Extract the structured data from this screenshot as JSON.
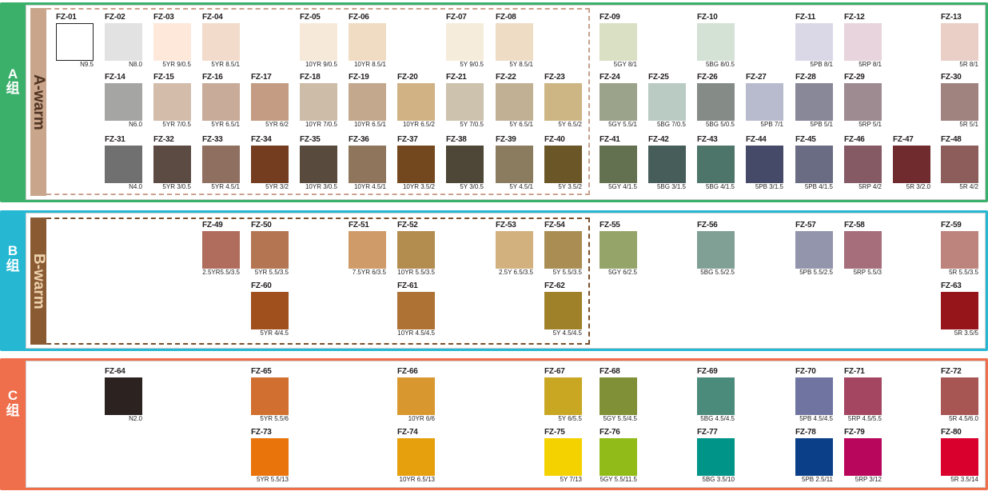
{
  "groups": [
    {
      "band_letter": "A",
      "band_char": "组",
      "strip_label": "A-warm",
      "frame_color": "#3bb06b",
      "strip_color": "#c9a58b",
      "strip_text_color": "#4f3422",
      "dash_color": "#c9a18c",
      "rows": [
        [
          {
            "id": "FZ-01",
            "color": "#ffffff",
            "code": "N9.5"
          },
          {
            "id": "FZ-02",
            "color": "#e2e2e2",
            "code": "N8.0"
          },
          {
            "id": "FZ-03",
            "color": "#fde8da",
            "code": "5YR 9/0.5"
          },
          {
            "id": "FZ-04",
            "color": "#f2dbca",
            "code": "5YR 8.5/1"
          },
          {
            "id": "FZ-05",
            "color": "#f6e9d9",
            "code": "10YR 9/0.5"
          },
          {
            "id": "FZ-06",
            "color": "#f0dcc3",
            "code": "10YR 8.5/1"
          },
          {
            "id": "FZ-07",
            "color": "#f6ecdb",
            "code": "5Y 9/0.5"
          },
          {
            "id": "FZ-08",
            "color": "#eedcc4",
            "code": "5Y 8.5/1"
          },
          {
            "id": "FZ-09",
            "color": "#d9e0c4",
            "code": "5GY 8/1"
          },
          {
            "id": "FZ-10",
            "color": "#d4e1d5",
            "code": "5BG 8/0.5"
          },
          {
            "id": "FZ-11",
            "color": "#dad8e7",
            "code": "5PB 8/1"
          },
          {
            "id": "FZ-12",
            "color": "#e7d4dc",
            "code": "5RP 8/1"
          },
          {
            "id": "FZ-13",
            "color": "#e9cfc6",
            "code": "5R 8/1"
          }
        ],
        [
          {
            "id": "FZ-14",
            "color": "#a5a5a4",
            "code": "N6.0"
          },
          {
            "id": "FZ-15",
            "color": "#d3bcaa",
            "code": "5YR 7/0.5"
          },
          {
            "id": "FZ-16",
            "color": "#c8ab98",
            "code": "5YR 6.5/1"
          },
          {
            "id": "FZ-17",
            "color": "#c49c83",
            "code": "5YR 6/2"
          },
          {
            "id": "FZ-18",
            "color": "#ccbca8",
            "code": "10YR 7/0.5"
          },
          {
            "id": "FZ-19",
            "color": "#c3a88d",
            "code": "10YR 6.5/1"
          },
          {
            "id": "FZ-20",
            "color": "#d0b284",
            "code": "10YR 6.5/2"
          },
          {
            "id": "FZ-21",
            "color": "#cdc2ad",
            "code": "5Y 7/0.5"
          },
          {
            "id": "FZ-22",
            "color": "#c2b094",
            "code": "5Y 6.5/1"
          },
          {
            "id": "FZ-23",
            "color": "#ceb584",
            "code": "5Y 6.5/2"
          },
          {
            "id": "FZ-24",
            "color": "#9ca38b",
            "code": "5GY 5.5/1"
          },
          {
            "id": "FZ-25",
            "color": "#b9cbc2",
            "code": "5BG 7/0.5"
          },
          {
            "id": "FZ-26",
            "color": "#858c88",
            "code": "5BG 5/0.5"
          },
          {
            "id": "FZ-27",
            "color": "#b8bbcd",
            "code": "5PB 7/1"
          },
          {
            "id": "FZ-28",
            "color": "#888898",
            "code": "5PB 5/1"
          },
          {
            "id": "FZ-29",
            "color": "#9d8b91",
            "code": "5RP 5/1"
          },
          {
            "id": "FZ-30",
            "color": "#a0837f",
            "code": "5R 5/1"
          }
        ],
        [
          {
            "id": "FZ-31",
            "color": "#707070",
            "code": "N4.0"
          },
          {
            "id": "FZ-32",
            "color": "#5b4b43",
            "code": "5YR 3/0.5"
          },
          {
            "id": "FZ-33",
            "color": "#8f6f5f",
            "code": "5YR 4.5/1"
          },
          {
            "id": "FZ-34",
            "color": "#743d20",
            "code": "5YR 3/2"
          },
          {
            "id": "FZ-35",
            "color": "#584b3d",
            "code": "10YR 3/0.5"
          },
          {
            "id": "FZ-36",
            "color": "#90755d",
            "code": "10YR 4.5/1"
          },
          {
            "id": "FZ-37",
            "color": "#73481e",
            "code": "10YR 3.5/2"
          },
          {
            "id": "FZ-38",
            "color": "#4e4636",
            "code": "5Y 3/0.5"
          },
          {
            "id": "FZ-39",
            "color": "#8b7c60",
            "code": "5Y 4.5/1"
          },
          {
            "id": "FZ-40",
            "color": "#6b5627",
            "code": "5Y 3.5/2"
          },
          {
            "id": "FZ-41",
            "color": "#637151",
            "code": "5GY 4/1.5"
          },
          {
            "id": "FZ-42",
            "color": "#465d59",
            "code": "5BG 3/1.5"
          },
          {
            "id": "FZ-43",
            "color": "#4e7569",
            "code": "5BG 4/1.5"
          },
          {
            "id": "FZ-44",
            "color": "#464a69",
            "code": "5PB 3/1.5"
          },
          {
            "id": "FZ-45",
            "color": "#696c82",
            "code": "5PB 4/1.5"
          },
          {
            "id": "FZ-46",
            "color": "#865a65",
            "code": "5RP 4/2"
          },
          {
            "id": "FZ-47",
            "color": "#6f2b2e",
            "code": "5R 3/2.0"
          },
          {
            "id": "FZ-48",
            "color": "#8c5d5a",
            "code": "5R 4/2"
          }
        ]
      ]
    },
    {
      "band_letter": "B",
      "band_char": "组",
      "strip_label": "B-warm",
      "frame_color": "#26b8d3",
      "strip_color": "#8a5a33",
      "strip_text_color": "#edd2ae",
      "dash_color": "#7b4f2c",
      "rows": [
        [
          {
            "id": "FZ-49",
            "color": "#b06d5d",
            "code": "2.5YR5.5/3.5"
          },
          {
            "id": "FZ-50",
            "color": "#b47552",
            "code": "5YR 5.5/3.5"
          },
          {
            "id": "FZ-51",
            "color": "#cf9b68",
            "code": "7.5YR 6/3.5"
          },
          {
            "id": "FZ-52",
            "color": "#b38c50",
            "code": "10YR 5.5/3.5"
          },
          {
            "id": "FZ-53",
            "color": "#d2b17e",
            "code": "2.5Y 6.5/3.5"
          },
          {
            "id": "FZ-54",
            "color": "#a98d53",
            "code": "5Y 5.5/3.5"
          },
          {
            "id": "FZ-55",
            "color": "#95a569",
            "code": "5GY 6/2.5"
          },
          {
            "id": "FZ-56",
            "color": "#80a096",
            "code": "5BG 5.5/2.5"
          },
          {
            "id": "FZ-57",
            "color": "#9395ac",
            "code": "5PB 5.5/2.5"
          },
          {
            "id": "FZ-58",
            "color": "#a66d7b",
            "code": "5RP 5.5/3"
          },
          {
            "id": "FZ-59",
            "color": "#bd837d",
            "code": "5R 5.5/3.5"
          }
        ],
        [
          {
            "id": "FZ-60",
            "color": "#9f501c",
            "code": "5YR 4/4.5"
          },
          {
            "id": "FZ-61",
            "color": "#ae7334",
            "code": "10YR 4.5/4.5"
          },
          {
            "id": "FZ-62",
            "color": "#9f8129",
            "code": "5Y 4.5/4.5"
          },
          {
            "id": "FZ-63",
            "color": "#95151a",
            "code": "5R 3.5/5"
          }
        ]
      ]
    },
    {
      "band_letter": "C",
      "band_char": "组",
      "frame_color": "#ef6e4b",
      "rows": [
        [
          {
            "id": "FZ-64",
            "color": "#2c2321",
            "code": "N2.0"
          },
          {
            "id": "FZ-65",
            "color": "#d06f30",
            "code": "5YR 5.5/6"
          },
          {
            "id": "FZ-66",
            "color": "#d8982f",
            "code": "10YR 6/6"
          },
          {
            "id": "FZ-67",
            "color": "#c9a723",
            "code": "5Y 6/5.5"
          },
          {
            "id": "FZ-68",
            "color": "#7f9036",
            "code": "5GY 5.5/4.5"
          },
          {
            "id": "FZ-69",
            "color": "#4b8b7b",
            "code": "5BG 4.5/4.5"
          },
          {
            "id": "FZ-70",
            "color": "#6f75a0",
            "code": "5PB 4.5/4.5"
          },
          {
            "id": "FZ-71",
            "color": "#a44661",
            "code": "5RP 4.5/5.5"
          },
          {
            "id": "FZ-72",
            "color": "#a85653",
            "code": "5R 4.5/6.0"
          }
        ],
        [
          {
            "id": "FZ-73",
            "color": "#e8740b",
            "code": "5YR 5.5/13"
          },
          {
            "id": "FZ-74",
            "color": "#e6a00d",
            "code": "10YR 6.5/13"
          },
          {
            "id": "FZ-75",
            "color": "#f4d200",
            "code": "5Y 7/13"
          },
          {
            "id": "FZ-76",
            "color": "#90bb18",
            "code": "5GY 5.5/11.5"
          },
          {
            "id": "FZ-77",
            "color": "#009488",
            "code": "5BG 3.5/10"
          },
          {
            "id": "FZ-78",
            "color": "#0b4089",
            "code": "5PB 2.5/11"
          },
          {
            "id": "FZ-79",
            "color": "#b9065d",
            "code": "5RP 3/12"
          },
          {
            "id": "FZ-80",
            "color": "#d9002e",
            "code": "5R 3.5/14"
          }
        ]
      ]
    }
  ]
}
